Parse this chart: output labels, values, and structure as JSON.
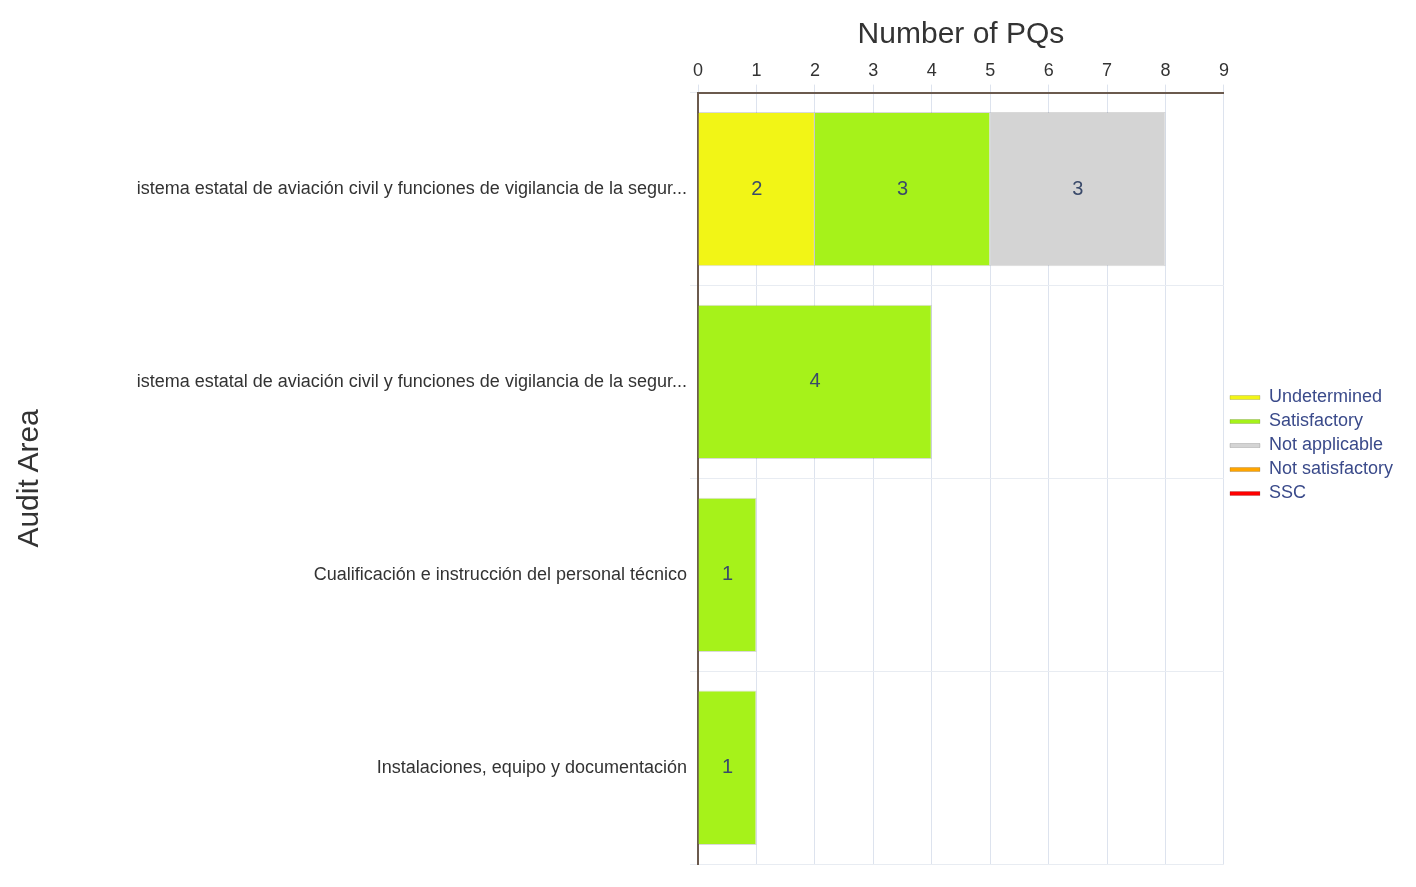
{
  "chart_data": {
    "type": "bar",
    "orientation": "horizontal",
    "stacked": true,
    "xlabel": "Number of PQs",
    "ylabel": "Audit Area",
    "categories": [
      "istema estatal de aviación civil y funciones de vigilancia de la segur...",
      "istema estatal de aviación civil y funciones de vigilancia de la segur...",
      "Cualificación e instrucción del personal técnico",
      "Instalaciones, equipo y documentación"
    ],
    "series": [
      {
        "name": "Undetermined",
        "color": "#f2f516",
        "values": [
          2,
          null,
          null,
          null
        ]
      },
      {
        "name": "Satisfactory",
        "color": "#a6f21a",
        "values": [
          3,
          4,
          1,
          1
        ]
      },
      {
        "name": "Not applicable",
        "color": "#d4d4d4",
        "values": [
          3,
          null,
          null,
          null
        ]
      },
      {
        "name": "Not satisfactory",
        "color": "#ffa500",
        "values": [
          null,
          null,
          null,
          null
        ]
      },
      {
        "name": "SSC",
        "color": "#ff0000",
        "values": [
          null,
          null,
          null,
          null
        ]
      }
    ],
    "xlim": [
      0,
      9
    ],
    "xticks": [
      0,
      1,
      2,
      3,
      4,
      5,
      6,
      7,
      8,
      9
    ],
    "grid": true,
    "legend": "right",
    "data_labels": true
  }
}
